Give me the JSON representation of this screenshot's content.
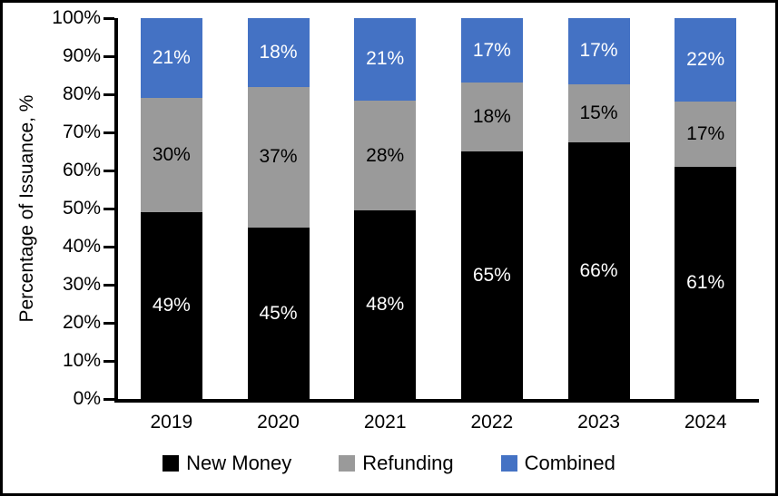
{
  "chart_data": {
    "type": "bar",
    "stacked": true,
    "title": "",
    "xlabel": "",
    "ylabel": "Percentage of Issuance, %",
    "ylim": [
      0,
      100
    ],
    "grid": false,
    "legend_position": "bottom",
    "data_label_suffix": "%",
    "categories": [
      "2019",
      "2020",
      "2021",
      "2022",
      "2023",
      "2024"
    ],
    "yticks": [
      "0%",
      "10%",
      "20%",
      "30%",
      "40%",
      "50%",
      "60%",
      "70%",
      "80%",
      "90%",
      "100%"
    ],
    "series": [
      {
        "name": "New Money",
        "color": "#000000",
        "label_color": "#ffffff",
        "values": [
          49,
          45,
          48,
          65,
          66,
          61
        ]
      },
      {
        "name": "Refunding",
        "color": "#9A9A9A",
        "label_color": "#000000",
        "values": [
          30,
          37,
          28,
          18,
          15,
          17
        ]
      },
      {
        "name": "Combined",
        "color": "#4472C4",
        "label_color": "#ffffff",
        "values": [
          21,
          18,
          21,
          17,
          17,
          22
        ]
      }
    ],
    "colors": {
      "axis": "#000000",
      "background": "#ffffff",
      "border": "#000000"
    }
  }
}
